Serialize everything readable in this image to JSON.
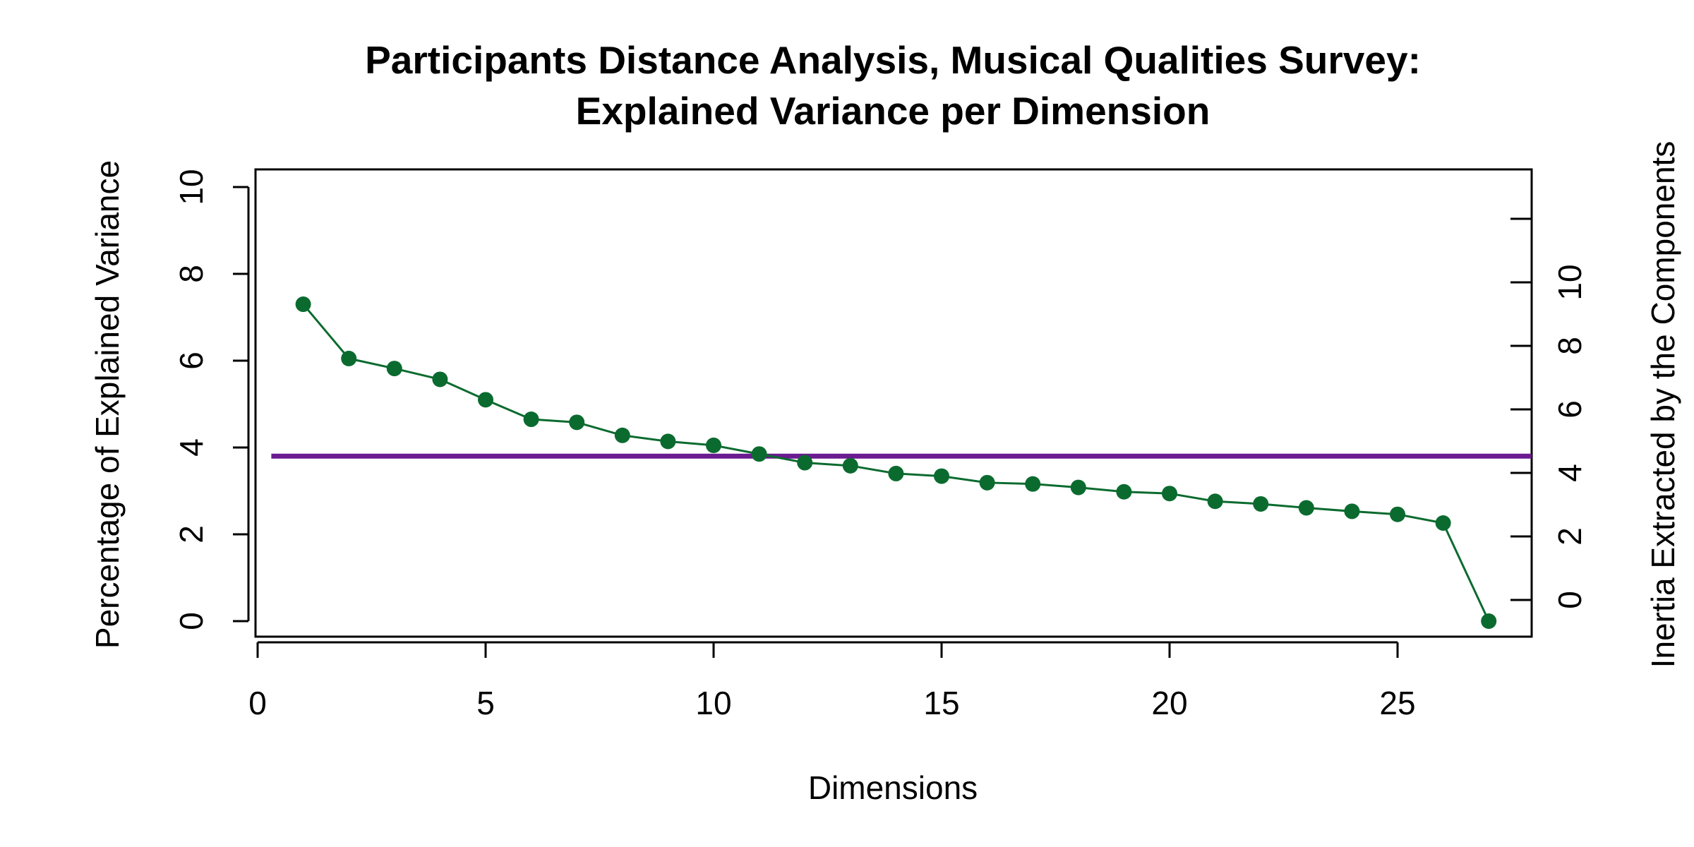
{
  "chart_data": {
    "type": "line",
    "title": "Participants Distance Analysis, Musical Qualities Survey:",
    "subtitle": "Explained Variance per Dimension",
    "xlabel": "Dimensions",
    "ylabel": "Percentage of Explained Variance",
    "y2label": "Inertia Extracted by the Components",
    "xlim": [
      0,
      28
    ],
    "ylim": [
      0,
      10
    ],
    "y2lim": [
      0,
      12
    ],
    "x_ticks": [
      0,
      5,
      10,
      15,
      20,
      25
    ],
    "y_ticks": [
      0,
      2,
      4,
      6,
      8,
      10
    ],
    "y2_ticks": [
      0,
      2,
      4,
      6,
      8,
      10
    ],
    "grid": false,
    "series_color": "#0b6b2f",
    "reference_line_color": "#6a1b8f",
    "reference_line_value": 3.8,
    "x": [
      1,
      2,
      3,
      4,
      5,
      6,
      7,
      8,
      9,
      10,
      11,
      12,
      13,
      14,
      15,
      16,
      17,
      18,
      19,
      20,
      21,
      22,
      23,
      24,
      25,
      26,
      27
    ],
    "values": [
      7.3,
      6.05,
      5.82,
      5.57,
      5.1,
      4.65,
      4.58,
      4.28,
      4.14,
      4.05,
      3.85,
      3.65,
      3.58,
      3.4,
      3.34,
      3.19,
      3.16,
      3.08,
      2.98,
      2.94,
      2.76,
      2.7,
      2.61,
      2.53,
      2.46,
      2.26,
      0.0
    ]
  }
}
